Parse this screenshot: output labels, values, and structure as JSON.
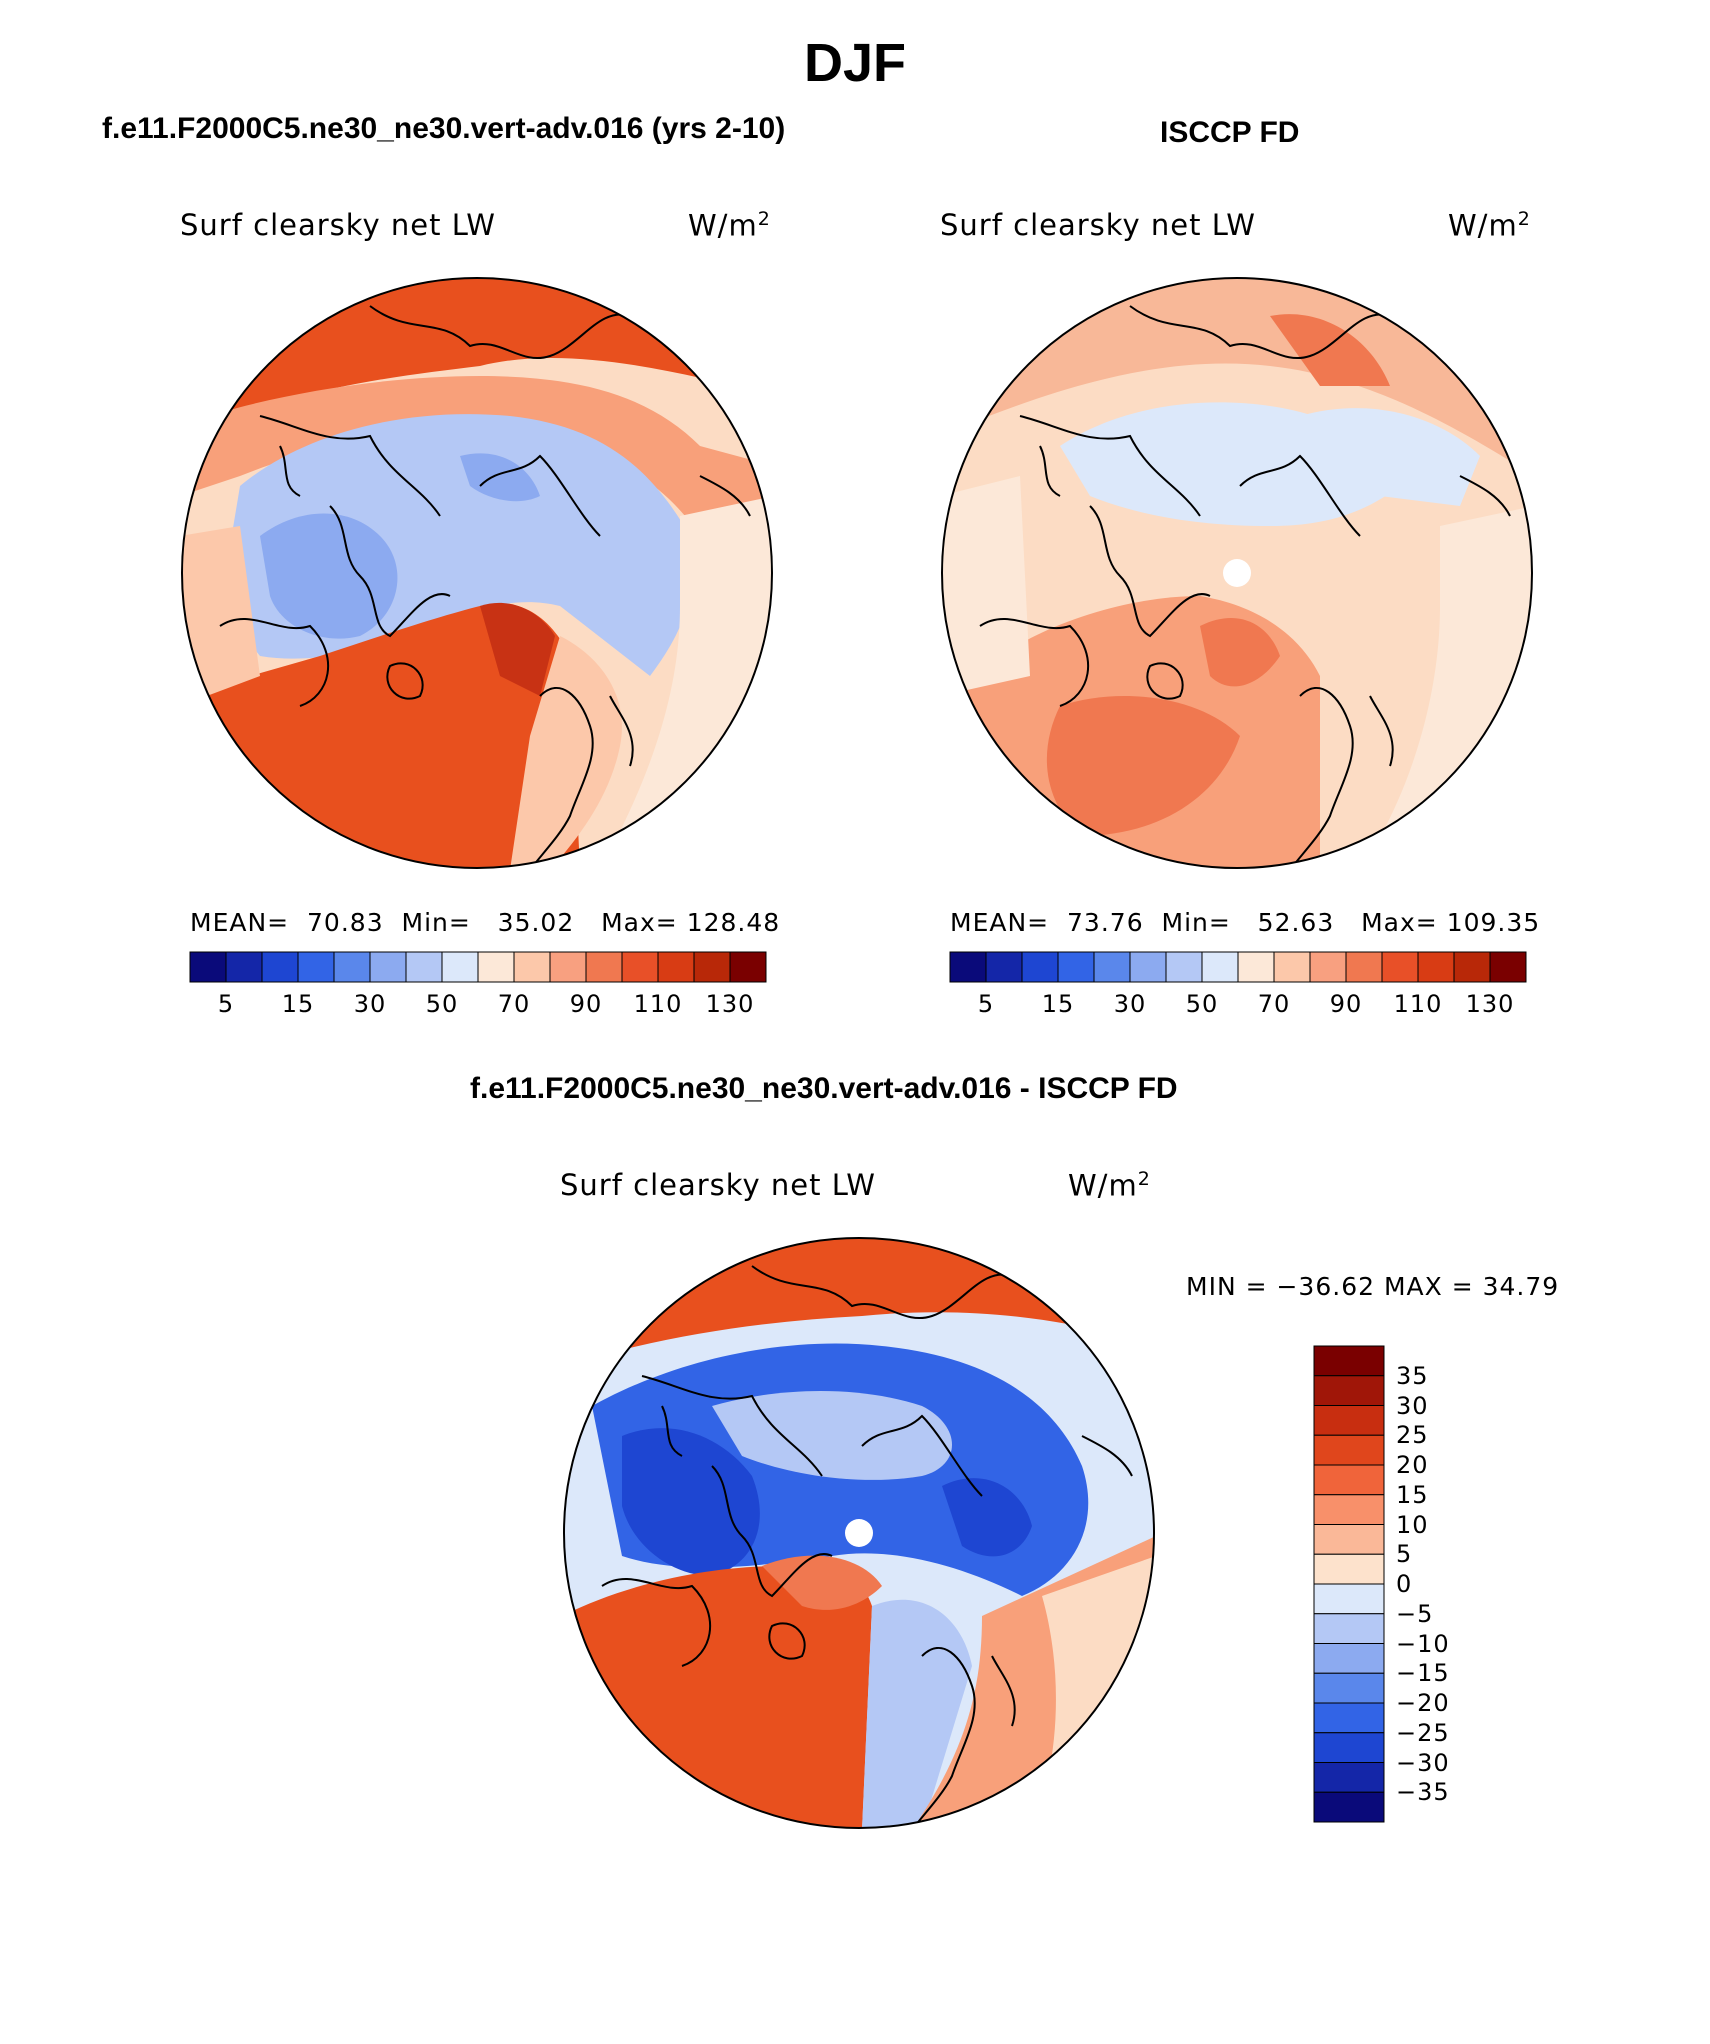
{
  "title": "DJF",
  "panels": [
    {
      "id": "model",
      "title": "f.e11.F2000C5.ne30_ne30.vert-adv.016 (yrs 2-10)",
      "variable": "Surf clearsky net LW",
      "units_base": "W/m",
      "units_exp": "2",
      "stats": {
        "mean_label": "MEAN=",
        "mean": "70.83",
        "min_label": "Min=",
        "min": "35.02",
        "max_label": "Max=",
        "max": "128.48"
      }
    },
    {
      "id": "obs",
      "title": "ISCCP FD",
      "variable": "Surf clearsky net LW",
      "units_base": "W/m",
      "units_exp": "2",
      "stats": {
        "mean_label": "MEAN=",
        "mean": "73.76",
        "min_label": "Min=",
        "min": "52.63",
        "max_label": "Max=",
        "max": "109.35"
      }
    },
    {
      "id": "diff",
      "title": "f.e11.F2000C5.ne30_ne30.vert-adv.016 - ISCCP FD",
      "variable": "Surf clearsky net LW",
      "units_base": "W/m",
      "units_exp": "2",
      "minmax_text": "MIN = −36.62 MAX =  34.79"
    }
  ],
  "abs_colorbar": {
    "colors": [
      "#0a0a7a",
      "#1426a8",
      "#1e46d2",
      "#3264e6",
      "#5a87eb",
      "#8caaf0",
      "#b4c8f5",
      "#dce8fa",
      "#fce8d8",
      "#fcc8aa",
      "#f8a080",
      "#f07850",
      "#e85028",
      "#d83c14",
      "#b82808",
      "#7a0000"
    ],
    "tick_labels": [
      "5",
      "15",
      "30",
      "50",
      "70",
      "90",
      "110",
      "130"
    ]
  },
  "diff_colorbar": {
    "colors_top_to_bottom": [
      "#7a0000",
      "#a01608",
      "#c82e10",
      "#e0461c",
      "#f0643a",
      "#f8906a",
      "#fab898",
      "#fde2cc",
      "#dce8fa",
      "#b4c8f5",
      "#8caaf0",
      "#5a87eb",
      "#3264e6",
      "#1e46d2",
      "#1426a8",
      "#0a0a7a"
    ],
    "tick_labels_top_to_bottom": [
      "35",
      "30",
      "25",
      "20",
      "15",
      "10",
      "5",
      "0",
      "−5",
      "−10",
      "−15",
      "−20",
      "−25",
      "−30",
      "−35"
    ]
  }
}
